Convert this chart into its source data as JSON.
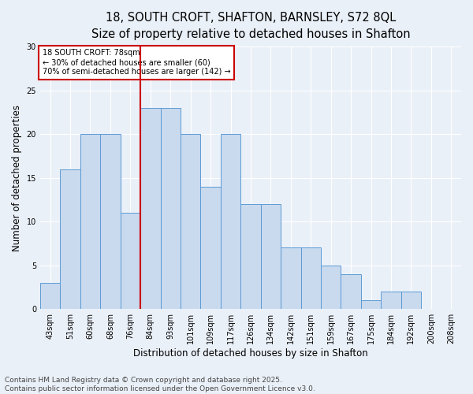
{
  "title_line1": "18, SOUTH CROFT, SHAFTON, BARNSLEY, S72 8QL",
  "title_line2": "Size of property relative to detached houses in Shafton",
  "xlabel": "Distribution of detached houses by size in Shafton",
  "ylabel": "Number of detached properties",
  "categories": [
    "43sqm",
    "51sqm",
    "60sqm",
    "68sqm",
    "76sqm",
    "84sqm",
    "93sqm",
    "101sqm",
    "109sqm",
    "117sqm",
    "126sqm",
    "134sqm",
    "142sqm",
    "151sqm",
    "159sqm",
    "167sqm",
    "175sqm",
    "184sqm",
    "192sqm",
    "200sqm",
    "208sqm"
  ],
  "values": [
    3,
    16,
    20,
    20,
    11,
    23,
    23,
    20,
    14,
    20,
    12,
    12,
    7,
    7,
    5,
    4,
    1,
    2,
    2,
    0,
    0
  ],
  "bar_color": "#c9d9ee",
  "bar_edge_color": "#5b9bd5",
  "reference_line_x": 4.5,
  "reference_line_color": "#cc0000",
  "annotation_text": "18 SOUTH CROFT: 78sqm\n← 30% of detached houses are smaller (60)\n70% of semi-detached houses are larger (142) →",
  "annotation_box_color": "#cc0000",
  "ylim": [
    0,
    30
  ],
  "yticks": [
    0,
    5,
    10,
    15,
    20,
    25,
    30
  ],
  "footer_text": "Contains HM Land Registry data © Crown copyright and database right 2025.\nContains public sector information licensed under the Open Government Licence v3.0.",
  "background_color": "#eaf0f8",
  "grid_color": "#ffffff",
  "title_fontsize": 10.5,
  "subtitle_fontsize": 9.5,
  "axis_label_fontsize": 8.5,
  "tick_fontsize": 7,
  "annotation_fontsize": 7,
  "footer_fontsize": 6.5
}
